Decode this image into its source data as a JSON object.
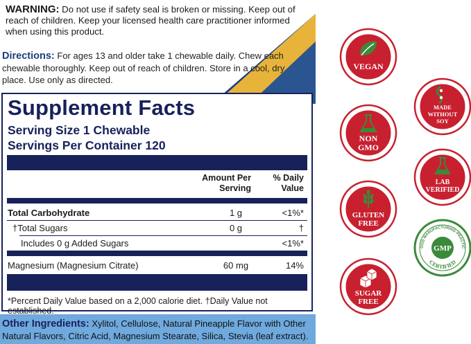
{
  "warning": {
    "heading": "WARNING:",
    "text": "Do not use if safety seal is broken or missing. Keep out of reach of children. Keep your licensed health care practitioner informed when using this product."
  },
  "directions": {
    "heading": "Directions:",
    "text": "For ages 13 and older take 1 chewable daily. Chew each chewable thoroughly. Keep out of reach of children. Store in a cool, dry place. Use only as directed."
  },
  "supplement_facts": {
    "title": "Supplement Facts",
    "serving_size": "Serving Size 1 Chewable",
    "servings_per_container": "Servings Per Container 120",
    "col_amount": "Amount Per Serving",
    "col_dv": "% Daily Value",
    "rows": [
      {
        "label": "Total Carbohydrate",
        "amount": "1 g",
        "dv": "<1%*"
      },
      {
        "label": "†Total Sugars",
        "amount": "0 g",
        "dv": "†"
      },
      {
        "label": "Includes 0 g Added Sugars",
        "amount": "",
        "dv": "<1%*"
      },
      {
        "label": "Magnesium (Magnesium Citrate)",
        "amount": "60 mg",
        "dv": "14%"
      }
    ],
    "footnote": "*Percent Daily Value based on a 2,000 calorie diet.  †Daily Value not established."
  },
  "other_ingredients": {
    "heading": "Other Ingredients:",
    "text": "Xylitol, Cellulose, Natural Pineapple Flavor with Other Natural Flavors, Citric Acid, Magnesium Stearate, Silica, Stevia (leaf extract)."
  },
  "badges": {
    "vegan": "VEGAN",
    "non_gmo_1": "NON",
    "non_gmo_2": "GMO",
    "gluten_free_1": "GLUTEN",
    "gluten_free_2": "FREE",
    "sugar_free_1": "SUGAR",
    "sugar_free_2": "FREE",
    "soy_1": "MADE",
    "soy_2": "WITHOUT",
    "soy_3": "SOY",
    "lab_1": "LAB",
    "lab_2": "VERIFIED",
    "gmp_center": "GMP",
    "gmp_top": "GOOD MANUFACTURING PRACTICE",
    "gmp_bottom": "CERTIFIED"
  },
  "colors": {
    "navy": "#17215a",
    "red": "#c8202f",
    "green": "#3b8a3a",
    "yellow": "#e8b33a",
    "blue": "#6fa9dd"
  }
}
